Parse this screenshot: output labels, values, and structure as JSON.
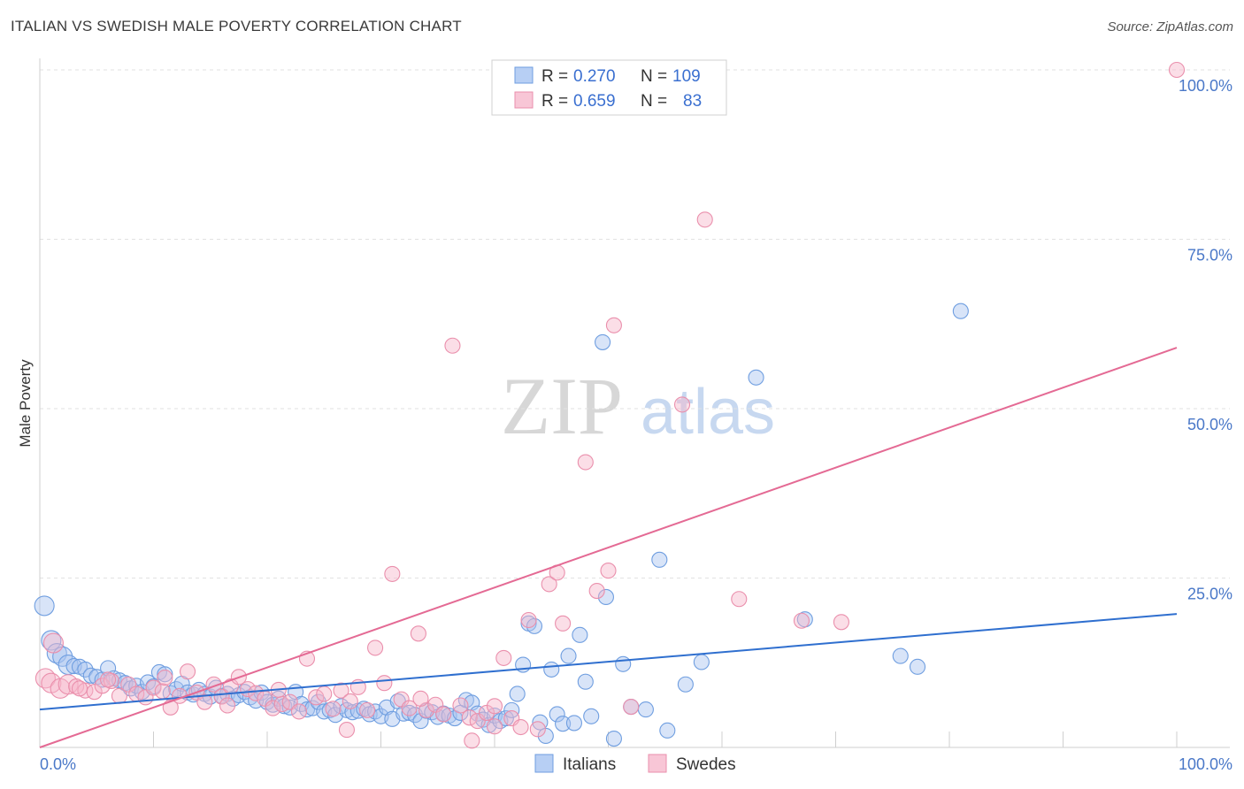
{
  "title": "ITALIAN VS SWEDISH MALE POVERTY CORRELATION CHART",
  "source": "Source: ZipAtlas.com",
  "watermark": {
    "zip": "ZIP",
    "atlas": "atlas"
  },
  "colors": {
    "italians_fill": "#a9c4f0",
    "italians_stroke": "#6f9ee0",
    "italians_line": "#2f6fcf",
    "swedes_fill": "#f6b6ca",
    "swedes_stroke": "#ea8fac",
    "swedes_line": "#e46a94",
    "tick_color": "#4a78c8"
  },
  "legend": {
    "rows": [
      {
        "r_label": "R = ",
        "r_value": "0.270",
        "n_label": "N = ",
        "n_value": "109"
      },
      {
        "r_label": "R = ",
        "r_value": "0.659",
        "n_label": "N = ",
        "n_value": "83"
      }
    ]
  },
  "chart_data": {
    "type": "scatter",
    "title": "ITALIAN VS SWEDISH MALE POVERTY CORRELATION CHART",
    "xlabel": "",
    "ylabel": "Male Poverty",
    "xlim": [
      0,
      100
    ],
    "ylim": [
      0,
      100
    ],
    "x_tick_labels": [
      "0.0%",
      "100.0%"
    ],
    "y_ticks": [
      25,
      50,
      75,
      100
    ],
    "y_tick_labels": [
      "25.0%",
      "50.0%",
      "75.0%",
      "100.0%"
    ],
    "grid": "horizontal dashed",
    "legend_placement": "top-center",
    "series": [
      {
        "name": "Italians",
        "r": 0.27,
        "n": 109,
        "trend": {
          "x": [
            0,
            100
          ],
          "y": [
            5.6,
            19.7
          ]
        },
        "points": [
          [
            0.4,
            20.9
          ],
          [
            1.0,
            15.8
          ],
          [
            1.5,
            13.9
          ],
          [
            2.0,
            13.4
          ],
          [
            2.5,
            12.2
          ],
          [
            3.0,
            12.0
          ],
          [
            3.5,
            11.9
          ],
          [
            4.0,
            11.5
          ],
          [
            4.5,
            10.6
          ],
          [
            5.0,
            10.4
          ],
          [
            5.5,
            10.0
          ],
          [
            6.0,
            11.7
          ],
          [
            6.5,
            10.2
          ],
          [
            7.0,
            9.9
          ],
          [
            7.5,
            9.5
          ],
          [
            8.0,
            8.7
          ],
          [
            8.5,
            9.1
          ],
          [
            9.0,
            8.2
          ],
          [
            9.5,
            9.6
          ],
          [
            10.0,
            9.0
          ],
          [
            10.5,
            11.1
          ],
          [
            11.0,
            10.8
          ],
          [
            11.5,
            8.0
          ],
          [
            12.0,
            8.6
          ],
          [
            12.5,
            9.4
          ],
          [
            13.0,
            8.1
          ],
          [
            13.5,
            7.8
          ],
          [
            14.0,
            8.5
          ],
          [
            14.5,
            7.9
          ],
          [
            15.0,
            7.5
          ],
          [
            15.5,
            8.8
          ],
          [
            16.0,
            7.6
          ],
          [
            16.5,
            7.9
          ],
          [
            17.0,
            7.2
          ],
          [
            17.5,
            7.7
          ],
          [
            18.0,
            8.2
          ],
          [
            18.5,
            7.4
          ],
          [
            19.0,
            6.9
          ],
          [
            19.5,
            8.1
          ],
          [
            20.0,
            6.7
          ],
          [
            20.5,
            6.3
          ],
          [
            21.0,
            7.2
          ],
          [
            21.5,
            6.1
          ],
          [
            22.0,
            5.9
          ],
          [
            22.5,
            8.2
          ],
          [
            23.0,
            6.4
          ],
          [
            23.5,
            5.6
          ],
          [
            24.0,
            5.8
          ],
          [
            24.5,
            6.7
          ],
          [
            25.0,
            5.3
          ],
          [
            25.5,
            5.5
          ],
          [
            26.0,
            4.8
          ],
          [
            26.5,
            6.1
          ],
          [
            27.0,
            5.5
          ],
          [
            27.5,
            5.2
          ],
          [
            28.0,
            5.4
          ],
          [
            28.5,
            5.7
          ],
          [
            29.0,
            4.9
          ],
          [
            29.5,
            5.3
          ],
          [
            30.0,
            4.6
          ],
          [
            30.5,
            5.9
          ],
          [
            31.0,
            4.2
          ],
          [
            31.5,
            6.8
          ],
          [
            32.0,
            5.0
          ],
          [
            32.5,
            5.1
          ],
          [
            33.0,
            4.8
          ],
          [
            33.5,
            3.9
          ],
          [
            34.0,
            5.4
          ],
          [
            34.5,
            5.2
          ],
          [
            35.0,
            4.5
          ],
          [
            35.5,
            5.0
          ],
          [
            36.0,
            4.7
          ],
          [
            36.5,
            4.3
          ],
          [
            37.0,
            5.1
          ],
          [
            37.5,
            7.0
          ],
          [
            38.0,
            6.6
          ],
          [
            38.5,
            5.0
          ],
          [
            39.0,
            4.1
          ],
          [
            39.5,
            3.3
          ],
          [
            40.0,
            4.7
          ],
          [
            40.5,
            3.9
          ],
          [
            41.0,
            4.3
          ],
          [
            41.5,
            5.5
          ],
          [
            42.0,
            7.9
          ],
          [
            42.5,
            12.2
          ],
          [
            43.0,
            18.3
          ],
          [
            43.5,
            17.9
          ],
          [
            44.0,
            3.7
          ],
          [
            44.5,
            1.7
          ],
          [
            45.0,
            11.5
          ],
          [
            45.5,
            4.9
          ],
          [
            46.0,
            3.5
          ],
          [
            46.5,
            13.5
          ],
          [
            47.0,
            3.6
          ],
          [
            47.5,
            16.6
          ],
          [
            48.0,
            9.7
          ],
          [
            48.5,
            4.6
          ],
          [
            49.5,
            59.8
          ],
          [
            49.8,
            22.2
          ],
          [
            50.5,
            1.3
          ],
          [
            51.3,
            12.3
          ],
          [
            52.0,
            6.0
          ],
          [
            53.3,
            5.6
          ],
          [
            54.5,
            27.7
          ],
          [
            55.2,
            2.5
          ],
          [
            56.8,
            9.3
          ],
          [
            58.2,
            12.6
          ],
          [
            63.0,
            54.6
          ],
          [
            67.3,
            18.9
          ],
          [
            75.7,
            13.5
          ],
          [
            77.2,
            11.9
          ],
          [
            81.0,
            64.4
          ]
        ]
      },
      {
        "name": "Swedes",
        "r": 0.659,
        "n": 83,
        "trend": {
          "x": [
            0,
            100
          ],
          "y": [
            0.0,
            59.0
          ]
        },
        "points": [
          [
            0.5,
            10.2
          ],
          [
            1.0,
            9.5
          ],
          [
            1.8,
            8.7
          ],
          [
            2.5,
            9.3
          ],
          [
            3.2,
            9.0
          ],
          [
            4.0,
            8.4
          ],
          [
            4.8,
            8.2
          ],
          [
            5.5,
            9.1
          ],
          [
            6.3,
            9.8
          ],
          [
            7.0,
            7.6
          ],
          [
            7.8,
            9.3
          ],
          [
            8.5,
            7.9
          ],
          [
            9.3,
            7.4
          ],
          [
            10.0,
            8.8
          ],
          [
            10.8,
            8.3
          ],
          [
            11.5,
            5.9
          ],
          [
            12.3,
            7.6
          ],
          [
            13.0,
            11.2
          ],
          [
            13.8,
            8.1
          ],
          [
            14.5,
            6.7
          ],
          [
            15.3,
            9.3
          ],
          [
            16.0,
            7.5
          ],
          [
            16.8,
            9.0
          ],
          [
            17.5,
            10.4
          ],
          [
            18.3,
            8.6
          ],
          [
            19.0,
            8.0
          ],
          [
            19.8,
            7.2
          ],
          [
            20.5,
            5.8
          ],
          [
            21.3,
            6.4
          ],
          [
            22.0,
            6.7
          ],
          [
            22.8,
            5.3
          ],
          [
            23.5,
            13.1
          ],
          [
            24.3,
            7.4
          ],
          [
            25.0,
            7.9
          ],
          [
            25.8,
            5.7
          ],
          [
            26.5,
            8.4
          ],
          [
            27.3,
            6.8
          ],
          [
            28.0,
            8.9
          ],
          [
            28.8,
            5.5
          ],
          [
            29.5,
            14.7
          ],
          [
            30.3,
            9.5
          ],
          [
            31.0,
            25.6
          ],
          [
            31.8,
            7.1
          ],
          [
            32.5,
            5.8
          ],
          [
            33.3,
            16.8
          ],
          [
            34.0,
            5.5
          ],
          [
            34.8,
            6.3
          ],
          [
            35.5,
            4.9
          ],
          [
            36.3,
            59.3
          ],
          [
            37.0,
            6.2
          ],
          [
            37.8,
            4.4
          ],
          [
            38.5,
            3.9
          ],
          [
            39.3,
            5.1
          ],
          [
            40.0,
            6.1
          ],
          [
            40.8,
            13.2
          ],
          [
            41.5,
            4.3
          ],
          [
            42.3,
            3.0
          ],
          [
            43.0,
            18.8
          ],
          [
            43.8,
            2.7
          ],
          [
            44.8,
            24.1
          ],
          [
            45.5,
            25.8
          ],
          [
            46.0,
            18.3
          ],
          [
            48.0,
            42.1
          ],
          [
            49.0,
            23.1
          ],
          [
            50.0,
            26.1
          ],
          [
            50.5,
            62.3
          ],
          [
            52.0,
            6.0
          ],
          [
            56.5,
            50.6
          ],
          [
            58.5,
            77.9
          ],
          [
            61.5,
            21.9
          ],
          [
            67.0,
            18.7
          ],
          [
            70.5,
            18.5
          ],
          [
            100,
            100
          ],
          [
            1.2,
            15.4
          ],
          [
            3.5,
            8.7
          ],
          [
            6.0,
            10.0
          ],
          [
            11.0,
            10.3
          ],
          [
            16.5,
            6.2
          ],
          [
            21.0,
            8.5
          ],
          [
            27.0,
            2.6
          ],
          [
            33.5,
            7.2
          ],
          [
            38.0,
            1.0
          ],
          [
            40.0,
            3.1
          ]
        ]
      }
    ]
  },
  "bottom_legend": [
    {
      "label": "Italians"
    },
    {
      "label": "Swedes"
    }
  ]
}
